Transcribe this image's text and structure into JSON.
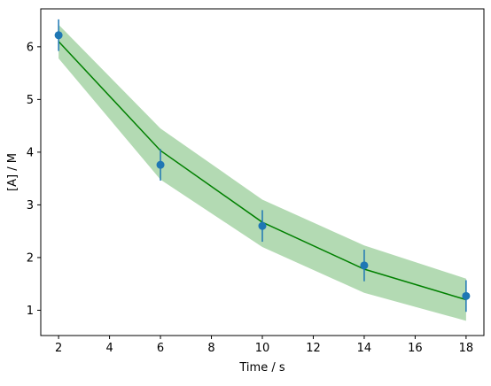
{
  "chart_data": {
    "type": "line",
    "title": "",
    "xlabel": "Time / s",
    "ylabel": "[A] / M",
    "xlim": [
      1.3,
      18.7
    ],
    "ylim": [
      0.52,
      6.72
    ],
    "xticks": [
      2,
      4,
      6,
      8,
      10,
      12,
      14,
      16,
      18
    ],
    "yticks": [
      1,
      2,
      3,
      4,
      5,
      6
    ],
    "grid": false,
    "legend": "none",
    "series": [
      {
        "kind": "band",
        "color": "#b3dab3",
        "x": [
          2,
          6,
          10,
          14,
          18
        ],
        "lower": [
          5.78,
          3.48,
          2.2,
          1.33,
          0.8
        ],
        "upper": [
          6.42,
          4.45,
          3.1,
          2.23,
          1.6
        ]
      },
      {
        "kind": "line",
        "color": "#008000",
        "x": [
          2,
          6,
          10,
          14,
          18
        ],
        "y": [
          6.1,
          4.03,
          2.67,
          1.78,
          1.2
        ]
      },
      {
        "kind": "scatter_errorbar",
        "color": "#1f77b4",
        "x": [
          2,
          6,
          10,
          14,
          18
        ],
        "y": [
          6.22,
          3.76,
          2.6,
          1.85,
          1.27
        ],
        "yerr": [
          0.3,
          0.3,
          0.3,
          0.3,
          0.3
        ]
      }
    ]
  }
}
